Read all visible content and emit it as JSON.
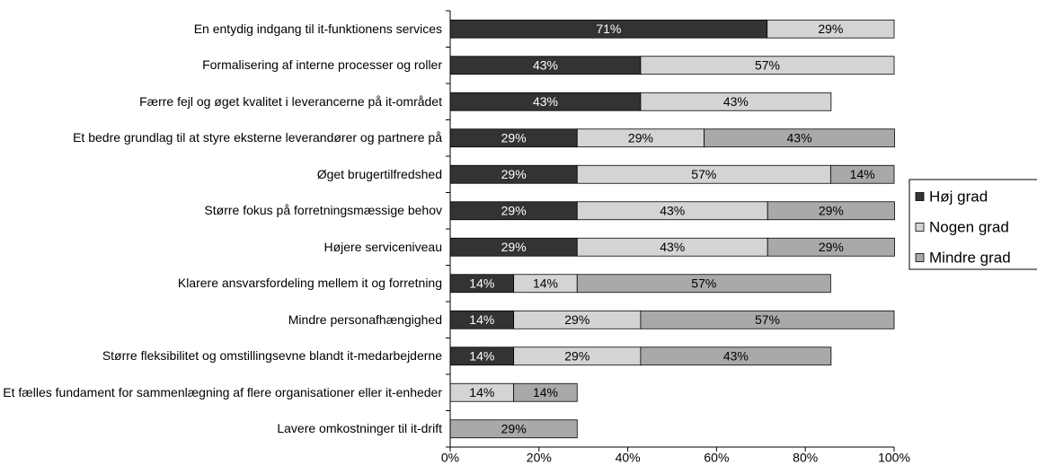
{
  "chart_data": {
    "type": "stacked-barh",
    "categories": [
      "En entydig indgang til it-funktionens services",
      "Formalisering af interne processer og roller",
      "Færre fejl og øget kvalitet i leverancerne på it-området",
      "Et bedre grundlag til at styre eksterne leverandører og partnere på",
      "Øget brugertilfredshed",
      "Større fokus på forretningsmæssige behov",
      "Højere serviceniveau",
      "Klarere ansvarsfordeling mellem it og forretning",
      "Mindre personafhængighed",
      "Større fleksibilitet og omstillingsevne blandt it-medarbejderne",
      "Et fælles fundament for sammenlægning af flere organisationer eller it-enheder",
      "Lavere omkostninger til it-drift"
    ],
    "series": [
      {
        "name": "Høj grad",
        "color": "#333333",
        "values": [
          71.4,
          42.9,
          42.9,
          28.6,
          28.6,
          28.6,
          28.6,
          14.3,
          14.3,
          14.3,
          null,
          null
        ],
        "value_labels": [
          "71%",
          "43%",
          "43%",
          "29%",
          "29%",
          "29%",
          "29%",
          "14%",
          "14%",
          "14%",
          null,
          null
        ]
      },
      {
        "name": "Nogen grad",
        "color": "#d4d4d4",
        "values": [
          28.6,
          57.1,
          42.9,
          28.6,
          57.1,
          42.9,
          42.9,
          14.3,
          28.6,
          28.6,
          14.3,
          null
        ],
        "value_labels": [
          "29%",
          "57%",
          "43%",
          "29%",
          "57%",
          "43%",
          "43%",
          "14%",
          "29%",
          "29%",
          "14%",
          null
        ]
      },
      {
        "name": "Mindre grad",
        "color": "#a9a9a9",
        "values": [
          null,
          null,
          null,
          42.9,
          14.3,
          28.6,
          28.6,
          57.1,
          57.1,
          42.9,
          14.3,
          28.6
        ],
        "value_labels": [
          null,
          null,
          null,
          "43%",
          "14%",
          "29%",
          "29%",
          "57%",
          "57%",
          "43%",
          "14%",
          "29%"
        ]
      }
    ],
    "xlim": [
      0,
      100
    ],
    "xticks": [
      {
        "value": 0,
        "label": "0%"
      },
      {
        "value": 20,
        "label": "20%"
      },
      {
        "value": 40,
        "label": "40%"
      },
      {
        "value": 60,
        "label": "60%"
      },
      {
        "value": 80,
        "label": "80%"
      },
      {
        "value": 100,
        "label": "100%"
      }
    ],
    "legend": "right"
  }
}
